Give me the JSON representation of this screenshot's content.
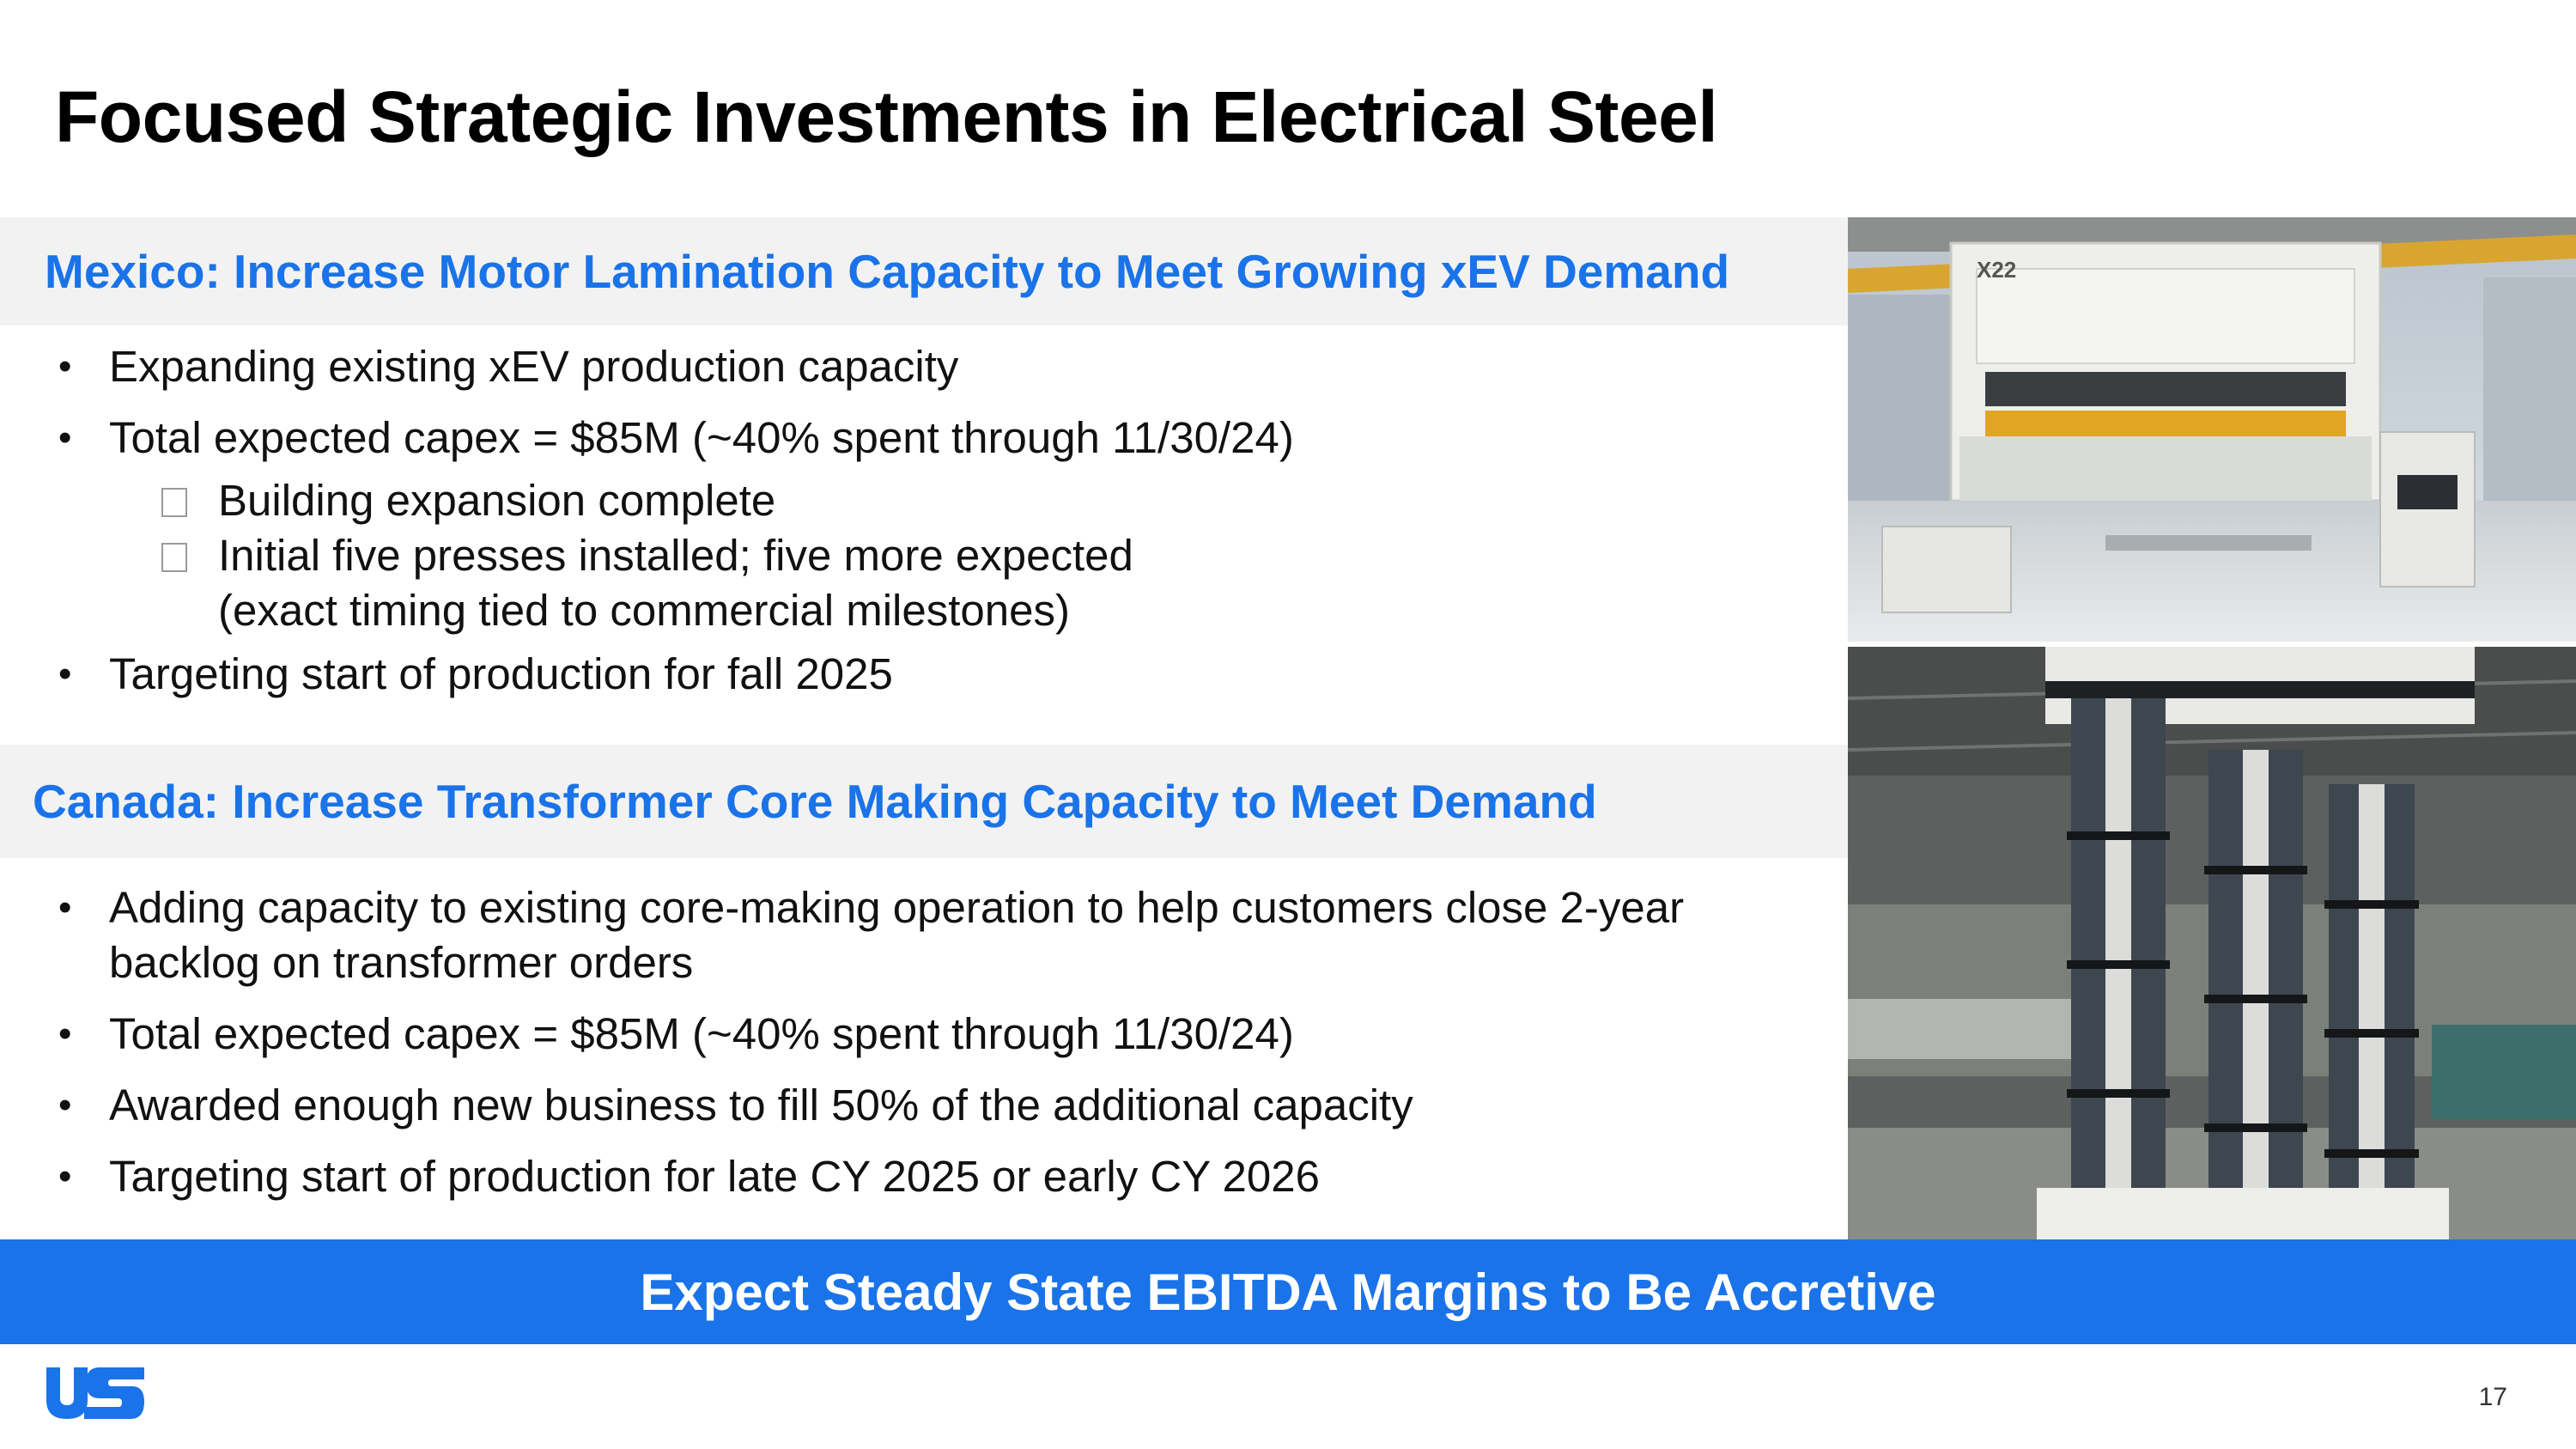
{
  "slide": {
    "title": "Focused Strategic Investments in Electrical Steel",
    "page_number": "17"
  },
  "mexico": {
    "header": "Mexico: Increase Motor Lamination Capacity to Meet Growing xEV Demand",
    "bullets": [
      "Expanding existing xEV production capacity",
      "Total expected capex = $85M (~40% spent through 11/30/24)",
      "Targeting start of production for fall 2025"
    ],
    "sub_bullets": [
      "Building expansion complete",
      "Initial five presses installed; five more expected (exact timing tied to commercial milestones)"
    ]
  },
  "canada": {
    "header": "Canada: Increase Transformer Core Making Capacity to Meet Demand",
    "bullets": [
      "Adding capacity to existing core-making operation to help customers close 2-year backlog on transformer orders",
      "Total expected capex = $85M (~40% spent through 11/30/24)",
      "Awarded enough new business to fill 50% of the additional capacity",
      "Targeting start of production for late CY 2025 or early CY 2026"
    ]
  },
  "photos": {
    "press_label": "X22"
  },
  "banner": {
    "text": "Expect Steady State EBITDA Margins to Be Accretive"
  },
  "colors": {
    "accent_blue": "#1a73e8",
    "header_bg": "#f2f2f2",
    "title": "#000000"
  }
}
